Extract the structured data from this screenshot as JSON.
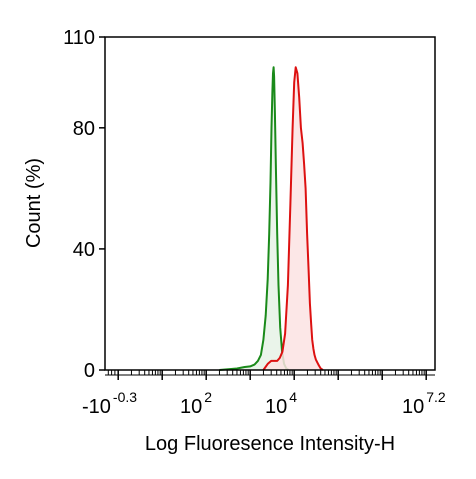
{
  "chart_data": {
    "type": "area",
    "title": "",
    "xlabel": "Log Fluoresence Intensity-H",
    "ylabel": "Count  (%)",
    "ylim": [
      0,
      110
    ],
    "x_scale": "log",
    "grid": false,
    "legend": "none",
    "y_ticks": [
      0,
      40,
      80,
      110
    ],
    "x_tick_labels": [
      {
        "base": "-10",
        "sup": "-0.3"
      },
      {
        "base": "10",
        "sup": "2"
      },
      {
        "base": "10",
        "sup": "4"
      },
      {
        "base": "10",
        "sup": "7.2"
      }
    ],
    "series": [
      {
        "color": "#1a8a1a",
        "fill": "#e6f2e6",
        "points": [
          [
            200,
            0
          ],
          [
            500,
            0.5
          ],
          [
            750,
            1
          ],
          [
            1000,
            1.2
          ],
          [
            1250,
            1.8
          ],
          [
            1500,
            3
          ],
          [
            1750,
            5
          ],
          [
            2000,
            10
          ],
          [
            2250,
            18
          ],
          [
            2500,
            30
          ],
          [
            2700,
            45
          ],
          [
            2900,
            62
          ],
          [
            3050,
            80
          ],
          [
            3200,
            92
          ],
          [
            3300,
            98
          ],
          [
            3400,
            100
          ],
          [
            3500,
            97
          ],
          [
            3650,
            85
          ],
          [
            3850,
            65
          ],
          [
            4100,
            45
          ],
          [
            4400,
            28
          ],
          [
            4800,
            14
          ],
          [
            5300,
            6
          ],
          [
            5900,
            2
          ],
          [
            6600,
            0.5
          ],
          [
            7500,
            0
          ]
        ]
      },
      {
        "color": "#dd1111",
        "fill": "#fbe3e3",
        "points": [
          [
            2000,
            0
          ],
          [
            2500,
            2
          ],
          [
            3000,
            3
          ],
          [
            3500,
            3
          ],
          [
            4100,
            3
          ],
          [
            4700,
            4
          ],
          [
            5400,
            6
          ],
          [
            6200,
            12
          ],
          [
            7200,
            28
          ],
          [
            8200,
            55
          ],
          [
            9200,
            80
          ],
          [
            10000,
            95
          ],
          [
            10800,
            100
          ],
          [
            11800,
            98
          ],
          [
            13000,
            90
          ],
          [
            14200,
            80
          ],
          [
            15500,
            75
          ],
          [
            16800,
            68
          ],
          [
            18200,
            60
          ],
          [
            19600,
            45
          ],
          [
            21200,
            33
          ],
          [
            22800,
            22
          ],
          [
            24300,
            15
          ],
          [
            25700,
            10
          ],
          [
            27300,
            7
          ],
          [
            29000,
            5
          ],
          [
            31000,
            3.5
          ],
          [
            33500,
            2.5
          ],
          [
            36500,
            1.5
          ],
          [
            40000,
            0.5
          ],
          [
            45000,
            0
          ]
        ]
      }
    ]
  }
}
